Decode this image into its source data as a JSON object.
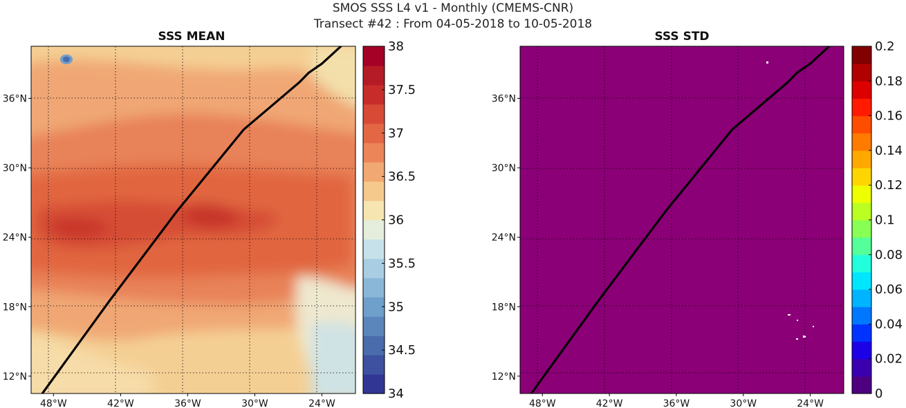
{
  "header": {
    "title_line1": "SMOS SSS L4 v1 - Monthly (CMEMS-CNR)",
    "title_line2": "Transect #42 : From 04-05-2018 to 10-05-2018"
  },
  "chart_data": [
    {
      "type": "heatmap",
      "title": "SSS MEAN",
      "x_ticks": [
        "48°W",
        "42°W",
        "36°W",
        "30°W",
        "24°W"
      ],
      "x_tick_values": [
        -48,
        -42,
        -36,
        -30,
        -24
      ],
      "y_ticks": [
        "12°N",
        "18°N",
        "24°N",
        "30°N",
        "36°N"
      ],
      "y_tick_values": [
        12,
        18,
        24,
        30,
        36
      ],
      "xlim": [
        -50,
        -21
      ],
      "ylim": [
        10.5,
        40.5
      ],
      "grid": true,
      "colormap": "RdYlBu_r",
      "colorbar": {
        "range": [
          34,
          38
        ],
        "ticks": [
          "34",
          "34.5",
          "35",
          "35.5",
          "36",
          "36.5",
          "37",
          "37.5",
          "38"
        ],
        "tick_values": [
          34,
          34.5,
          35,
          35.5,
          36,
          36.5,
          37,
          37.5,
          38
        ],
        "colors": [
          "#313695",
          "#3e51a0",
          "#4a6bac",
          "#5a86bb",
          "#6f9fcb",
          "#8ab7d8",
          "#a9cde2",
          "#c6e1ea",
          "#e5eedd",
          "#f6e5b0",
          "#f5c98c",
          "#f2a872",
          "#ec8558",
          "#e36645",
          "#d84a36",
          "#c82c2a",
          "#b51b26",
          "#a50026"
        ]
      },
      "track": {
        "lon": [
          -49,
          -43,
          -37,
          -31,
          -26,
          -25.2,
          -24,
          -22.3
        ],
        "lat": [
          10.5,
          18.5,
          26.2,
          33.3,
          37.4,
          38.2,
          39.0,
          40.5
        ]
      }
    },
    {
      "type": "heatmap",
      "title": "SSS STD",
      "x_ticks": [
        "48°W",
        "42°W",
        "36°W",
        "30°W",
        "24°W"
      ],
      "x_tick_values": [
        -48,
        -42,
        -36,
        -30,
        -24
      ],
      "y_ticks": [
        "12°N",
        "18°N",
        "24°N",
        "30°N",
        "36°N"
      ],
      "y_tick_values": [
        12,
        18,
        24,
        30,
        36
      ],
      "xlim": [
        -50,
        -21
      ],
      "ylim": [
        10.5,
        40.5
      ],
      "grid": true,
      "colormap": "jet",
      "field_value": 0,
      "field_color": "#8b0077",
      "colorbar": {
        "range": [
          0,
          0.2
        ],
        "ticks": [
          "0",
          "0.02",
          "0.04",
          "0.06",
          "0.08",
          "0.1",
          "0.12",
          "0.14",
          "0.16",
          "0.18",
          "0.2"
        ],
        "tick_values": [
          0,
          0.02,
          0.04,
          0.06,
          0.08,
          0.1,
          0.12,
          0.14,
          0.16,
          0.18,
          0.2
        ],
        "colors": [
          "#4d0080",
          "#3a00b0",
          "#1c00e6",
          "#0033ff",
          "#0077ff",
          "#00b4ff",
          "#00e6ff",
          "#22ffdd",
          "#55ff99",
          "#88ff55",
          "#bbff22",
          "#eeff00",
          "#ffd500",
          "#ffa800",
          "#ff7b00",
          "#ff4d00",
          "#ff1a00",
          "#dd0000",
          "#b00000",
          "#800000"
        ]
      },
      "track": {
        "lon": [
          -49,
          -43,
          -37,
          -31,
          -26,
          -25.2,
          -24,
          -22.3
        ],
        "lat": [
          10.5,
          18.5,
          26.2,
          33.3,
          37.4,
          38.2,
          39.0,
          40.5
        ]
      }
    }
  ]
}
